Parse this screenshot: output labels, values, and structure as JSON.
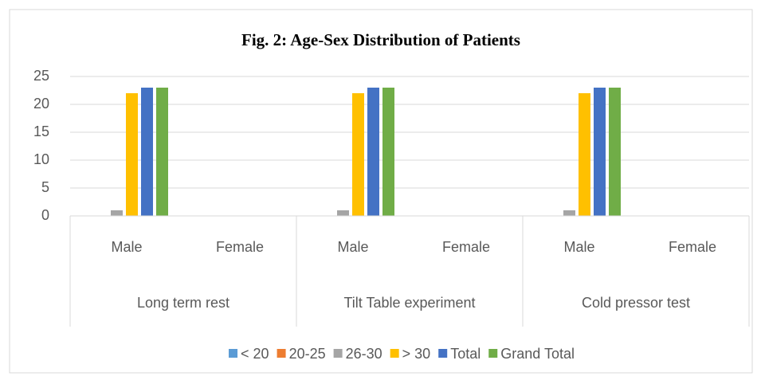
{
  "chart_data": {
    "type": "bar",
    "title": "Fig. 2: Age-Sex Distribution of Patients",
    "groups": [
      {
        "label": "Long term rest",
        "categories": [
          "Male",
          "Female"
        ]
      },
      {
        "label": "Tilt Table experiment",
        "categories": [
          "Male",
          "Female"
        ]
      },
      {
        "label": "Cold pressor test",
        "categories": [
          "Male",
          "Female"
        ]
      }
    ],
    "series": [
      {
        "name": "< 20",
        "color": "#5b9bd5",
        "values": [
          0,
          0,
          0,
          0,
          0,
          0
        ]
      },
      {
        "name": "20-25",
        "color": "#ed7d31",
        "values": [
          0,
          0,
          0,
          0,
          0,
          0
        ]
      },
      {
        "name": "26-30",
        "color": "#a5a5a5",
        "values": [
          1,
          0,
          1,
          0,
          1,
          0
        ]
      },
      {
        "name": "> 30",
        "color": "#ffc000",
        "values": [
          22,
          0,
          22,
          0,
          22,
          0
        ]
      },
      {
        "name": "Total",
        "color": "#4472c4",
        "values": [
          23,
          0,
          23,
          0,
          23,
          0
        ]
      },
      {
        "name": "Grand Total",
        "color": "#70ad47",
        "values": [
          23,
          0,
          23,
          0,
          23,
          0
        ]
      }
    ],
    "ylim": [
      0,
      25
    ],
    "yticks": [
      0,
      5,
      10,
      15,
      20,
      25
    ],
    "grid": true,
    "legend": "bottom"
  }
}
